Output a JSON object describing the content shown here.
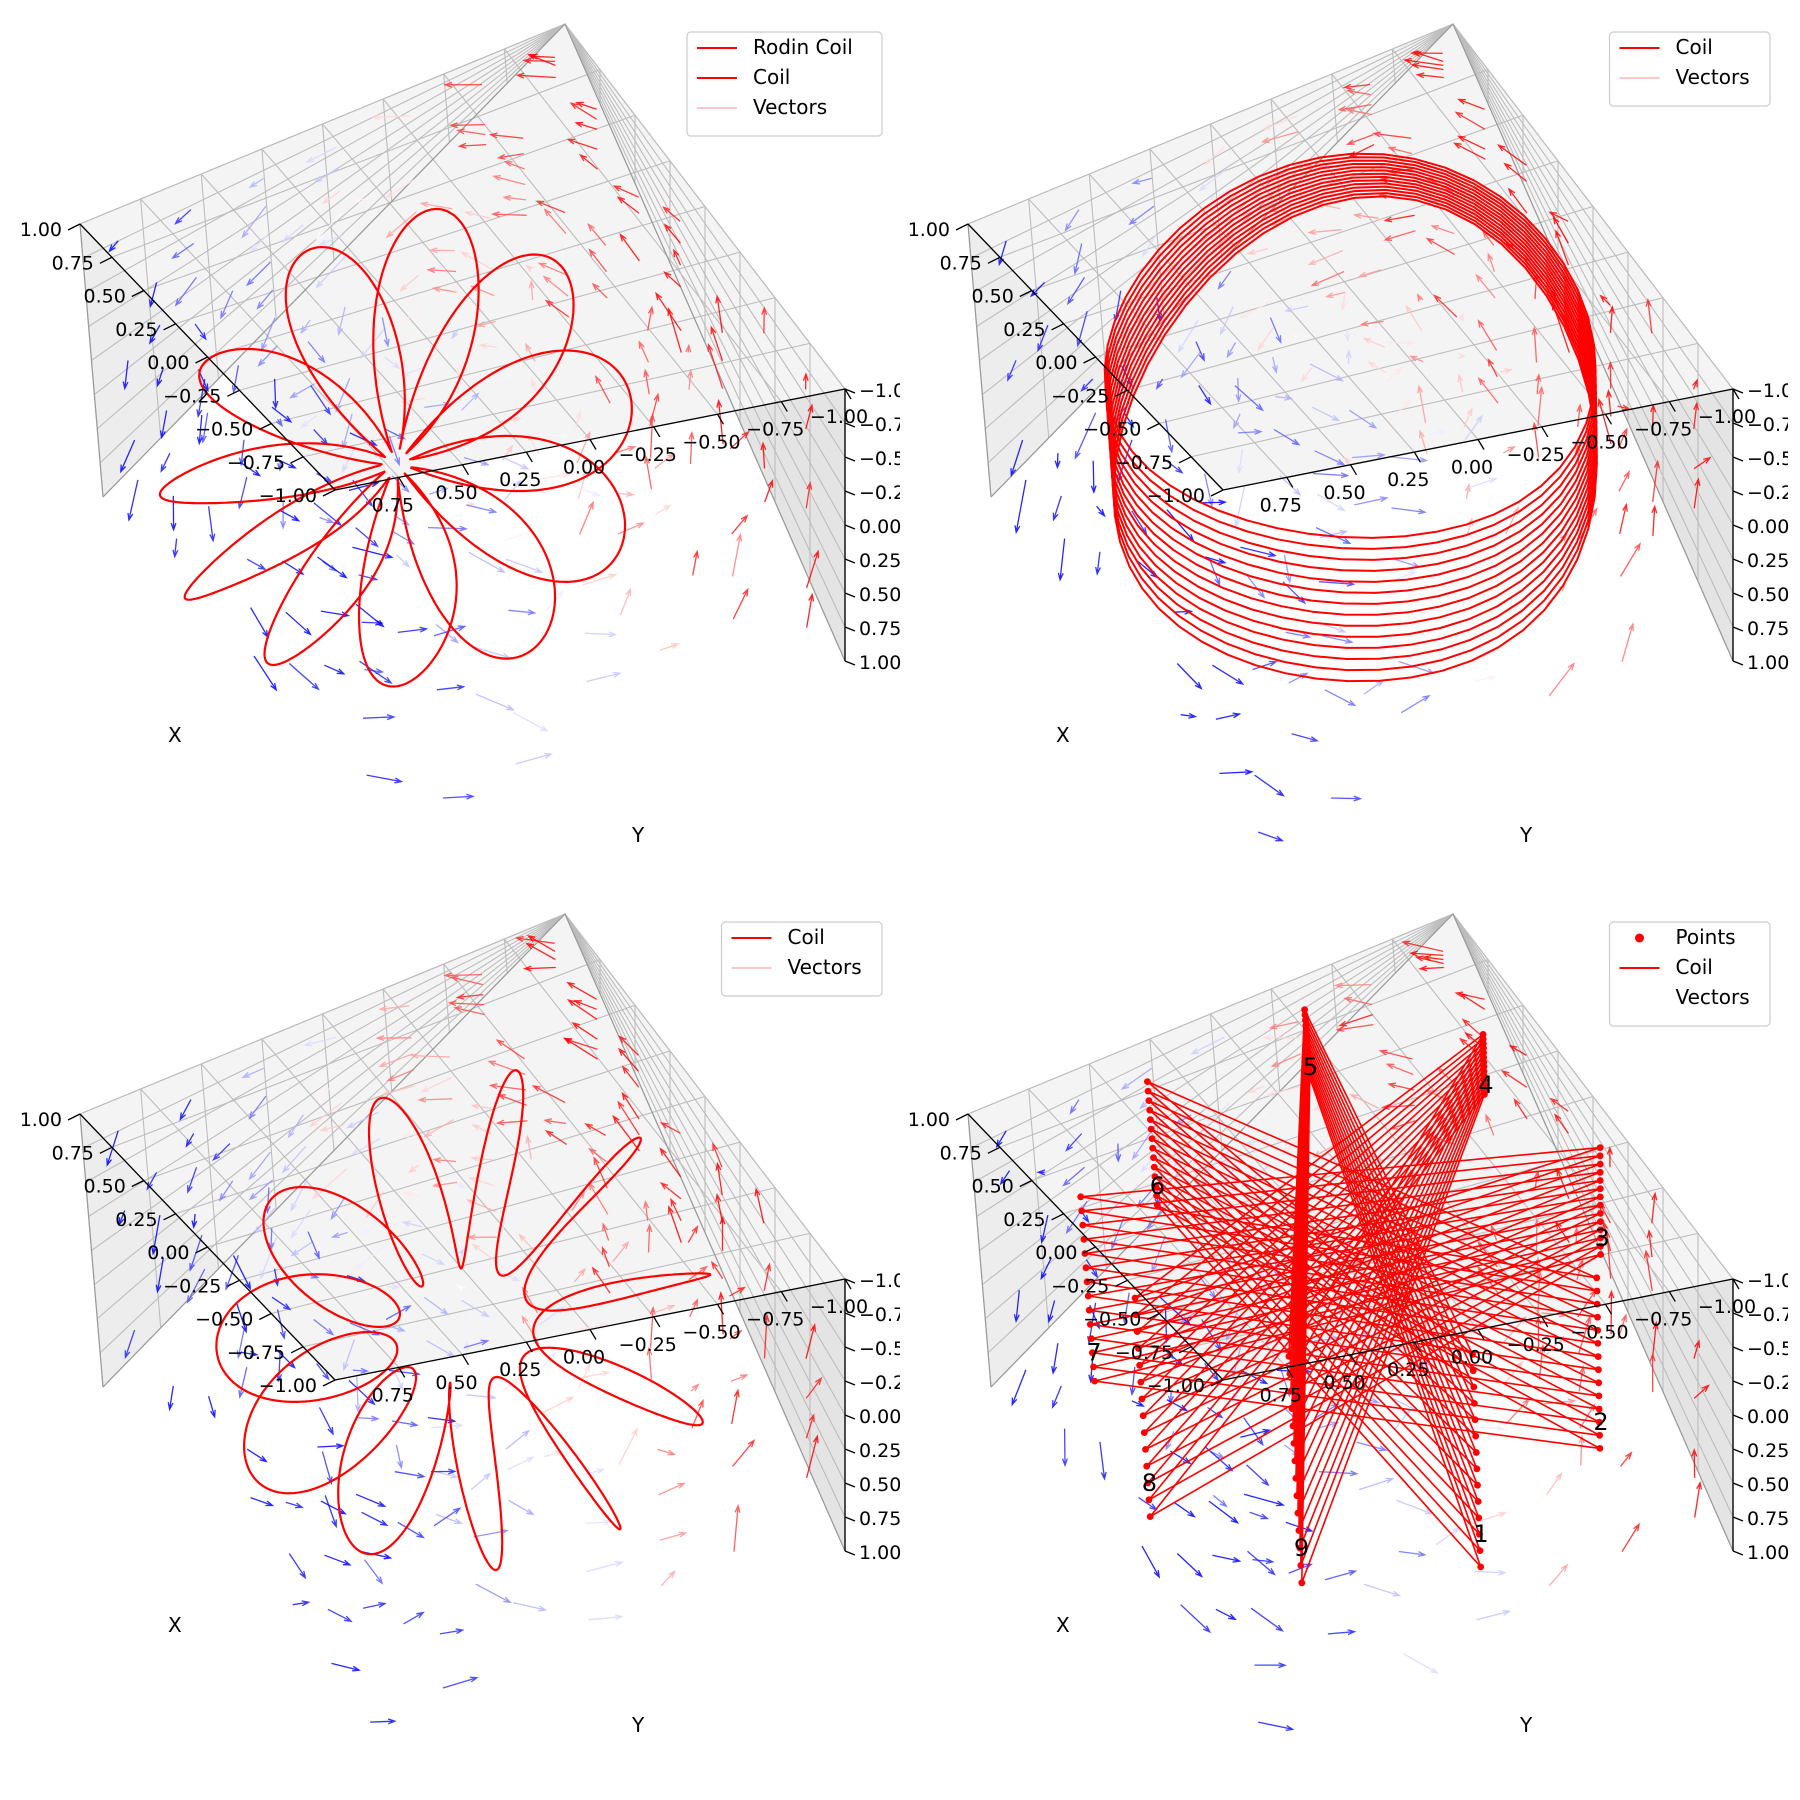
{
  "figure": {
    "title": ""
  },
  "chart_data": [
    {
      "type": "line",
      "subtype": "3d-coil-with-quiver",
      "panel": "top-left",
      "title": "",
      "xlabel": "X",
      "ylabel": "Y",
      "zlabel": "",
      "xlim": [
        -1.0,
        1.0
      ],
      "ylim": [
        -1.0,
        1.0
      ],
      "zlim": [
        -1.0,
        1.0
      ],
      "grid": true,
      "legend_position": "top-right",
      "x_ticks": [
        "1.00",
        "0.75",
        "0.50",
        "0.25",
        "0.00",
        "−0.25",
        "−0.50",
        "−0.75",
        "−1.00"
      ],
      "y_ticks": [
        "0.75",
        "0.50",
        "0.25",
        "0.00",
        "−0.25",
        "−0.50",
        "−0.75",
        "−1.00"
      ],
      "z_ticks": [
        "1.00",
        "0.75",
        "0.50",
        "0.25",
        "0.00",
        "−0.25",
        "−0.50",
        "−0.75",
        "−1.00"
      ],
      "legend": [
        {
          "label": "Rodin Coil",
          "style": "line",
          "color": "#ff0000"
        },
        {
          "label": "Coil",
          "style": "line",
          "color": "#ff0000"
        },
        {
          "label": "Vectors",
          "style": "line",
          "color": "#ffc8c8"
        }
      ],
      "coil": {
        "shape": "rose",
        "petals": 11,
        "loops": 2,
        "r_outer": 0.92,
        "r_inner": 0.05,
        "center": [
          0.22,
          -0.12
        ],
        "z": 0.5
      },
      "vectors": {
        "grid": 7,
        "color_low": "#0000ff",
        "color_high": "#ff0000"
      }
    },
    {
      "type": "line",
      "subtype": "3d-coil-with-quiver",
      "panel": "top-right",
      "title": "",
      "xlabel": "X",
      "ylabel": "Y",
      "zlabel": "",
      "xlim": [
        -1.0,
        1.0
      ],
      "ylim": [
        -1.0,
        1.0
      ],
      "zlim": [
        -1.0,
        1.0
      ],
      "grid": true,
      "legend_position": "top-right",
      "x_ticks": [
        "1.00",
        "0.75",
        "0.50",
        "0.25",
        "0.00",
        "−0.25",
        "−0.50",
        "−0.75",
        "−1.00"
      ],
      "y_ticks": [
        "0.75",
        "0.50",
        "0.25",
        "0.00",
        "−0.25",
        "−0.50",
        "−0.75",
        "−1.00"
      ],
      "z_ticks": [
        "1.00",
        "0.75",
        "0.50",
        "0.25",
        "0.00",
        "−0.25",
        "−0.50",
        "−0.75",
        "−1.00"
      ],
      "legend": [
        {
          "label": "Coil",
          "style": "line",
          "color": "#ff0000"
        },
        {
          "label": "Vectors",
          "style": "line",
          "color": "#ffc8c8"
        }
      ],
      "coil": {
        "shape": "solenoid",
        "turns": 14,
        "radius": 0.88,
        "z_range": [
          -0.35,
          0.5
        ]
      },
      "vectors": {
        "grid": 7,
        "color_low": "#0000ff",
        "color_high": "#ff0000"
      }
    },
    {
      "type": "line",
      "subtype": "3d-coil-with-quiver",
      "panel": "bottom-left",
      "title": "",
      "xlabel": "X",
      "ylabel": "Y",
      "zlabel": "",
      "xlim": [
        -1.0,
        1.0
      ],
      "ylim": [
        -1.0,
        1.0
      ],
      "zlim": [
        -1.0,
        1.0
      ],
      "grid": true,
      "legend_position": "top-right",
      "x_ticks": [
        "1.00",
        "0.75",
        "0.50",
        "0.25",
        "0.00",
        "−0.25",
        "−0.50",
        "−0.75",
        "−1.00"
      ],
      "y_ticks": [
        "0.75",
        "0.50",
        "0.25",
        "0.00",
        "−0.25",
        "−0.50",
        "−0.75",
        "−1.00"
      ],
      "z_ticks": [
        "1.00",
        "0.75",
        "0.50",
        "0.25",
        "0.00",
        "−0.25",
        "−0.50",
        "−0.75",
        "−1.00"
      ],
      "legend": [
        {
          "label": "Coil",
          "style": "line",
          "color": "#ff0000"
        },
        {
          "label": "Vectors",
          "style": "line",
          "color": "#ffc8c8"
        }
      ],
      "coil": {
        "shape": "toroidal-loops",
        "loops": 11,
        "r_major": 0.58,
        "r_minor": 0.33,
        "z": 0.35
      },
      "vectors": {
        "grid": 7,
        "color_low": "#0000ff",
        "color_high": "#ff0000"
      }
    },
    {
      "type": "line",
      "subtype": "3d-coil-with-quiver",
      "panel": "bottom-right",
      "title": "",
      "xlabel": "X",
      "ylabel": "Y",
      "zlabel": "",
      "xlim": [
        -1.0,
        1.0
      ],
      "ylim": [
        -1.0,
        1.0
      ],
      "zlim": [
        -1.0,
        1.0
      ],
      "grid": true,
      "legend_position": "top-right",
      "x_ticks": [
        "1.00",
        "0.75",
        "0.50",
        "0.25",
        "0.00",
        "−0.25",
        "−0.50",
        "−0.75",
        "−1.00"
      ],
      "y_ticks": [
        "0.75",
        "0.50",
        "0.25",
        "0.00",
        "−0.25",
        "−0.50",
        "−0.75",
        "−1.00"
      ],
      "z_ticks": [
        "1.00",
        "0.75",
        "0.50",
        "0.25",
        "0.00",
        "−0.25",
        "−0.50",
        "−0.75",
        "−1.00"
      ],
      "legend": [
        {
          "label": "Points",
          "style": "marker",
          "color": "#ff0000"
        },
        {
          "label": "Coil",
          "style": "line",
          "color": "#ff0000"
        },
        {
          "label": "Vectors",
          "style": "none",
          "color": "#ffc8c8"
        }
      ],
      "coil": {
        "shape": "star-polygon",
        "points": 9,
        "step": 4,
        "radius": 0.95,
        "z_range": [
          -0.8,
          0.5
        ],
        "layers": 14
      },
      "point_labels": [
        "1",
        "2",
        "3",
        "4",
        "5",
        "6",
        "7",
        "8",
        "9"
      ],
      "vectors": {
        "grid": 7,
        "color_low": "#0000ff",
        "color_high": "#ff0000"
      }
    }
  ]
}
